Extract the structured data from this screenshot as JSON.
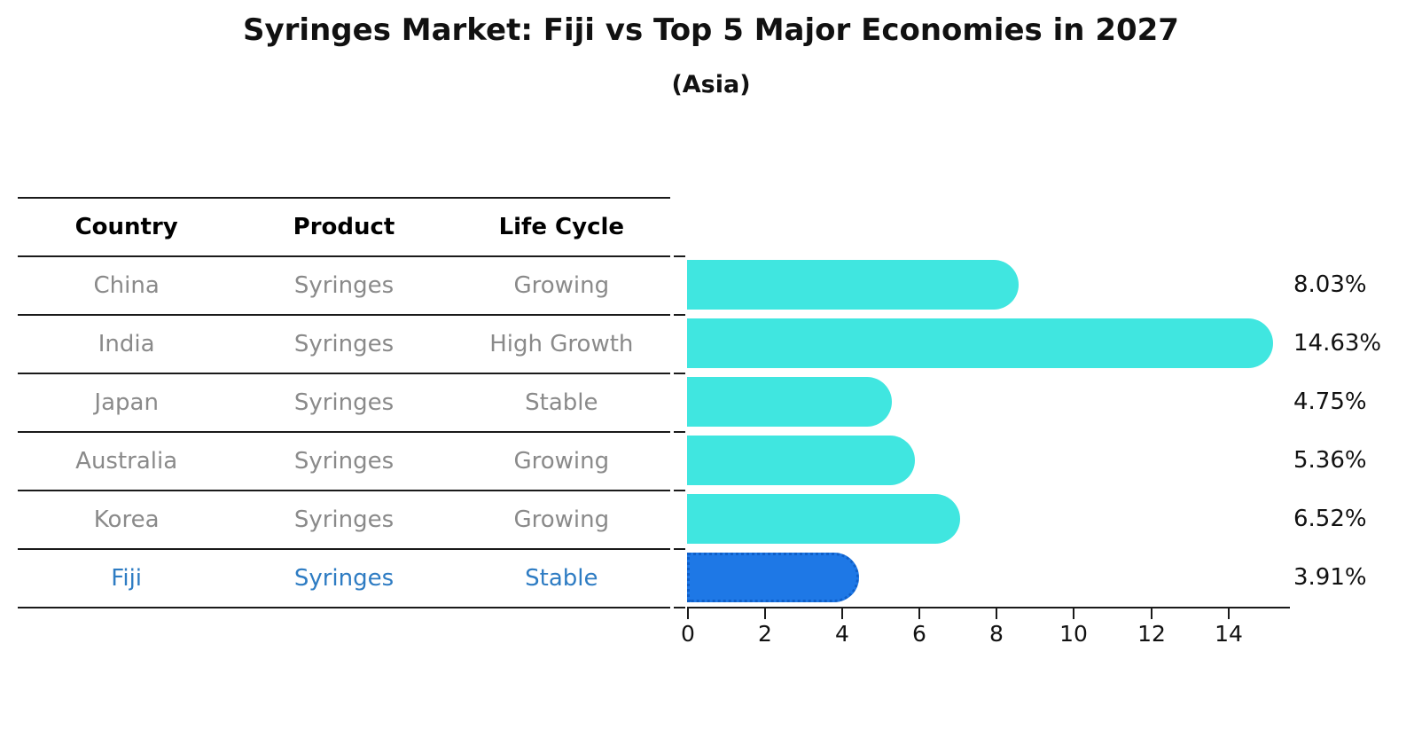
{
  "title": "Syringes Market: Fiji vs Top 5 Major Economies in 2027",
  "subtitle": "(Asia)",
  "table": {
    "headers": [
      "Country",
      "Product",
      "Life Cycle"
    ],
    "rows": [
      {
        "country": "China",
        "product": "Syringes",
        "life_cycle": "Growing",
        "highlight": false
      },
      {
        "country": "India",
        "product": "Syringes",
        "life_cycle": "High Growth",
        "highlight": false
      },
      {
        "country": "Japan",
        "product": "Syringes",
        "life_cycle": "Stable",
        "highlight": false
      },
      {
        "country": "Australia",
        "product": "Syringes",
        "life_cycle": "Growing",
        "highlight": false
      },
      {
        "country": "Korea",
        "product": "Syringes",
        "life_cycle": "Growing",
        "highlight": false
      },
      {
        "country": "Fiji",
        "product": "Syringes",
        "life_cycle": "Stable",
        "highlight": true
      }
    ]
  },
  "chart_data": {
    "type": "bar",
    "orientation": "horizontal",
    "title": "Syringes Market: Fiji vs Top 5 Major Economies in 2027",
    "subtitle": "(Asia)",
    "categories": [
      "China",
      "India",
      "Japan",
      "Australia",
      "Korea",
      "Fiji"
    ],
    "values": [
      8.03,
      14.63,
      4.75,
      5.36,
      6.52,
      3.91
    ],
    "value_labels": [
      "8.03%",
      "14.63%",
      "4.75%",
      "5.36%",
      "6.52%",
      "3.91%"
    ],
    "highlight_index": 5,
    "x_ticks": [
      0,
      2,
      4,
      6,
      8,
      10,
      12,
      14
    ],
    "xlim": [
      0,
      15.5
    ],
    "xlabel": "",
    "ylabel": "",
    "grid": false,
    "legend": false,
    "bar_color": "#40e6e0",
    "highlight_bar_color": "#1e78e6",
    "highlight_text_color": "#2e7cc3"
  },
  "colors": {
    "background": "#ffffff",
    "axis": "#1a1a1a",
    "table_line": "#1a1a1a",
    "muted_text": "#8a8a8a",
    "value_text": "#111111"
  }
}
